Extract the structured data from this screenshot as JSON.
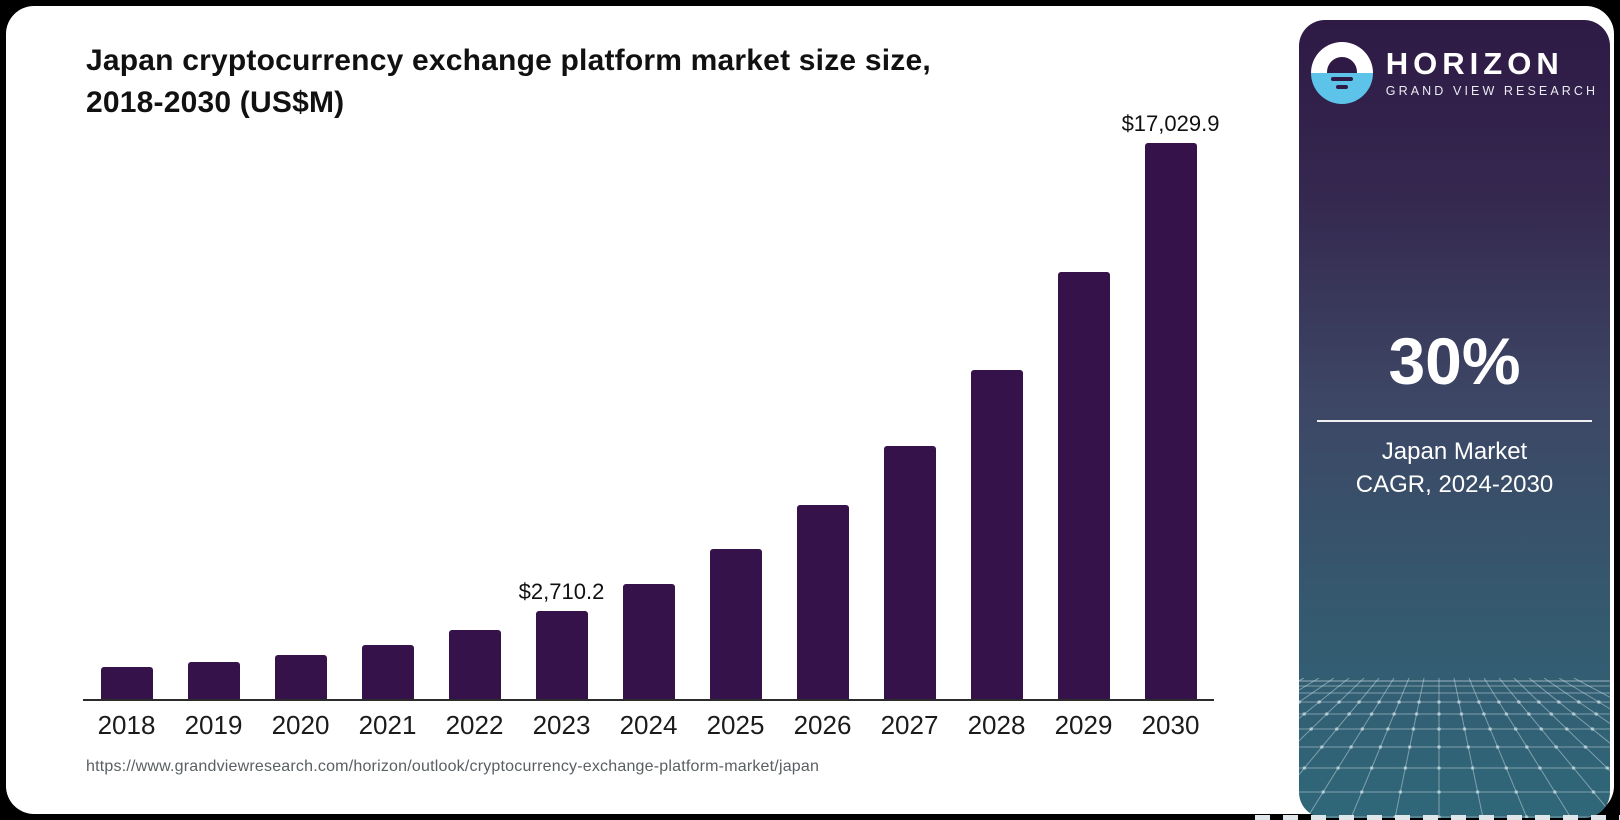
{
  "header": {
    "title_line1": "Japan cryptocurrency exchange platform market size size,",
    "title_line2": "2018-2030 (US$M)"
  },
  "source_url": "https://www.grandviewresearch.com/horizon/outlook/cryptocurrency-exchange-platform-market/japan",
  "sidebar": {
    "brand": {
      "name": "HORIZON",
      "subtitle": "GRAND VIEW RESEARCH"
    },
    "stat": {
      "value": "30%",
      "caption_line1": "Japan Market",
      "caption_line2": "CAGR, 2024-2030"
    },
    "colors": {
      "gradient_top": "#2e1a45",
      "gradient_mid": "#3d4765",
      "gradient_bottom": "#2f6779",
      "logo_blue": "#5ec3e8",
      "text": "#ffffff"
    }
  },
  "chart_data": {
    "type": "bar",
    "title": "Japan cryptocurrency exchange platform market size size, 2018-2030 (US$M)",
    "unit": "US$M",
    "categories": [
      "2018",
      "2019",
      "2020",
      "2021",
      "2022",
      "2023",
      "2024",
      "2025",
      "2026",
      "2027",
      "2028",
      "2029",
      "2030"
    ],
    "values": [
      980,
      1135,
      1350,
      1655,
      2115,
      2710.2,
      3523.3,
      4580.2,
      5954.3,
      7740.6,
      10062.8,
      13081.6,
      17029.9
    ],
    "callouts": {
      "2023": "$2,710.2",
      "2030": "$17,029.9"
    },
    "bar_color": "#35124a",
    "axis_color": "#2b2b2b",
    "ylim": [
      0,
      17029.9
    ],
    "grid": false,
    "legend": "none",
    "cagr_note": "30% Japan Market CAGR, 2024-2030"
  }
}
